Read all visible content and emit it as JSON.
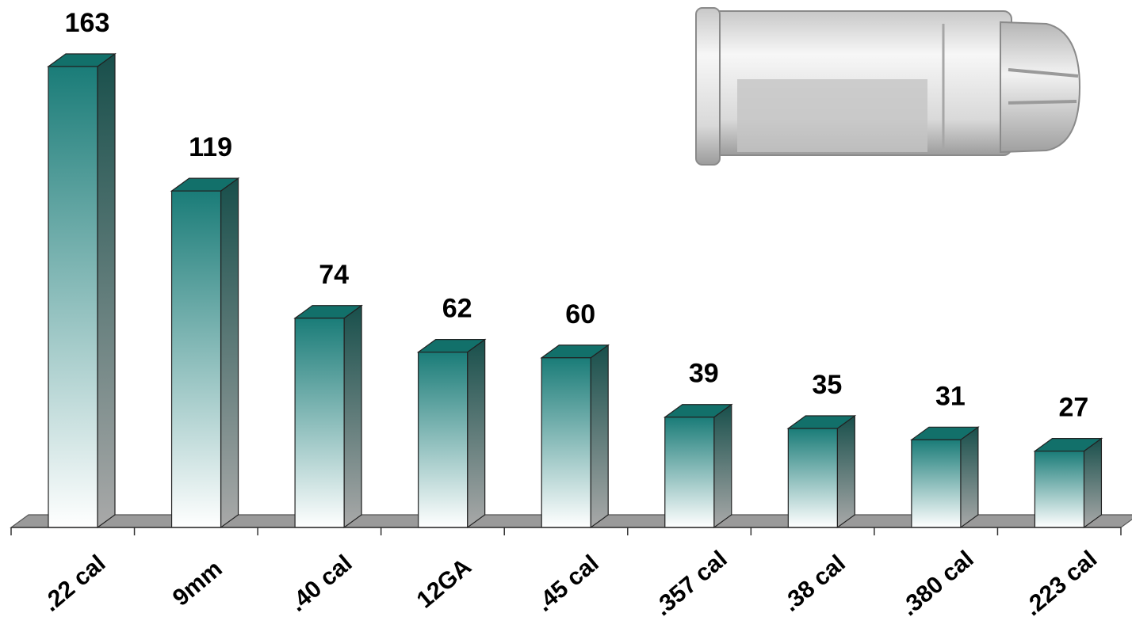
{
  "chart_data": {
    "type": "bar",
    "categories": [
      ".22 cal",
      "9mm",
      ".40 cal",
      "12GA",
      ".45 cal",
      ".357 cal",
      ".38 cal",
      ".380 cal",
      ".223 cal"
    ],
    "values": [
      163,
      119,
      74,
      62,
      60,
      39,
      35,
      31,
      27
    ],
    "title": "",
    "xlabel": "",
    "ylabel": "",
    "ylim": [
      0,
      163
    ],
    "grid": false,
    "legend": "none",
    "style": "3d-column",
    "colors": {
      "bar_top": "#12706a",
      "bar_gradient_top": "#1a7c78",
      "bar_gradient_bottom": "#ffffff",
      "bar_side": "#184f4b",
      "floor": "#9a9a9a"
    }
  },
  "decoration": {
    "icon": "bullet-cartridge-icon"
  }
}
